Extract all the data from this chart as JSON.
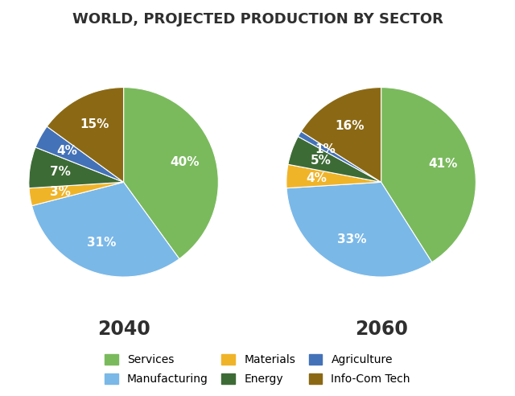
{
  "title": "WORLD, PROJECTED PRODUCTION BY SECTOR",
  "title_fontsize": 13,
  "title_fontweight": "bold",
  "sectors": [
    "Services",
    "Manufacturing",
    "Materials",
    "Energy",
    "Agriculture",
    "Info-Com Tech"
  ],
  "colors": [
    "#7aba5d",
    "#7ab8e8",
    "#f0b429",
    "#3d6b35",
    "#4472b8",
    "#8b6914"
  ],
  "chart_2040": {
    "label": "2040",
    "values": [
      40,
      31,
      3,
      7,
      4,
      15
    ],
    "startangle": 90
  },
  "chart_2060": {
    "label": "2060",
    "values": [
      41,
      33,
      4,
      5,
      1,
      16
    ],
    "startangle": 90
  },
  "label_fontsize": 11,
  "label_color": "white",
  "legend_fontsize": 10,
  "year_fontsize": 17,
  "year_fontweight": "bold",
  "pct_distance": 0.68
}
